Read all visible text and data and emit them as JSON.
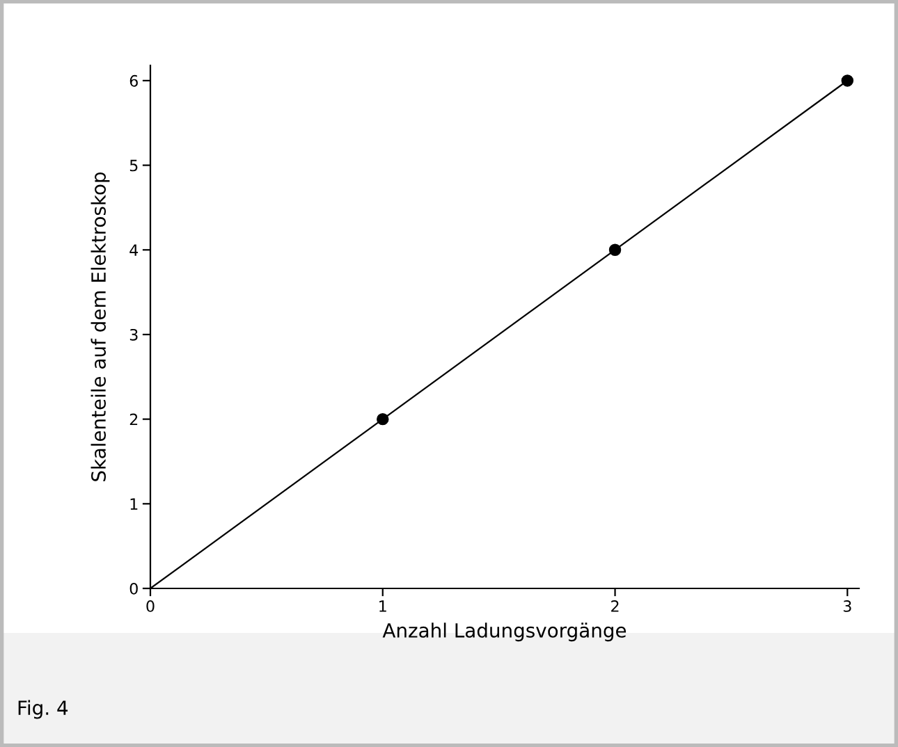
{
  "chart_data": {
    "type": "scatter",
    "xlabel": "Anzahl Ladungsvorgänge",
    "ylabel": "Skalenteile auf dem Elektroskop",
    "annotations": [
      "Fig. 4"
    ],
    "series": [
      {
        "type": "line",
        "x": [
          0,
          3
        ],
        "values": [
          0,
          6
        ],
        "color": "#000000",
        "marker": "none",
        "line_style": "solid"
      },
      {
        "x": [
          1,
          2,
          3
        ],
        "values": [
          2,
          4,
          6
        ],
        "color": "#000000",
        "marker": "circle"
      }
    ],
    "xlim": [
      0,
      3.05
    ],
    "xticks": [
      0,
      1,
      2,
      3
    ],
    "ylim": [
      0,
      6.18
    ],
    "yticks": [
      0,
      1,
      2,
      3,
      4,
      5,
      6
    ],
    "grid": false,
    "legend": false
  }
}
